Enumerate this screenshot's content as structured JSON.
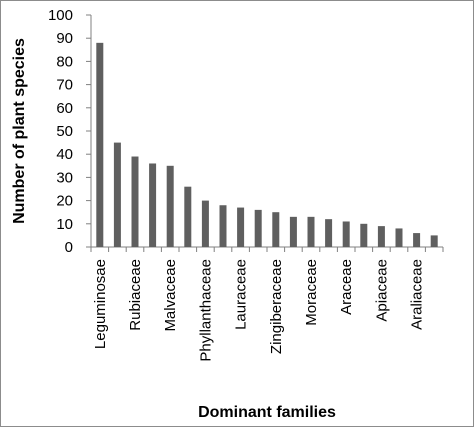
{
  "chart_data": {
    "type": "bar",
    "xlabel": "Dominant families",
    "ylabel": "Number of plant species",
    "ylim": [
      0,
      100
    ],
    "yticks": [
      0,
      10,
      20,
      30,
      40,
      50,
      60,
      70,
      80,
      90,
      100
    ],
    "grid": false,
    "legend": "none",
    "bar_color": "#5f5f5f",
    "axis_color": "#808080",
    "categories": [
      "Leguminosae",
      "",
      "Rubiaceae",
      "",
      "Malvaceae",
      "",
      "Phyllanthaceae",
      "",
      "Lauraceae",
      "",
      "Zingiberaceae",
      "",
      "Moraceae",
      "",
      "Araceae",
      "",
      "Apiaceae",
      "",
      "Araliaceae",
      ""
    ],
    "values": [
      88,
      45,
      39,
      36,
      35,
      26,
      20,
      18,
      17,
      16,
      15,
      13,
      13,
      12,
      11,
      10,
      9,
      8,
      6,
      5
    ]
  }
}
